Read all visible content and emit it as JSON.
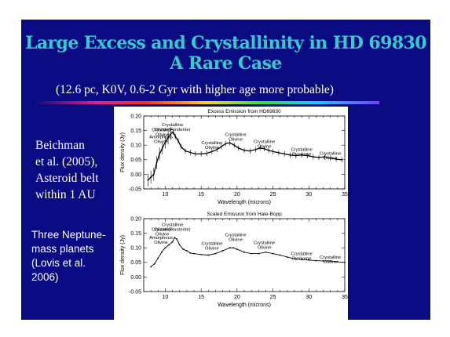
{
  "slide": {
    "title_line1": "Large Excess and Crystallinity in HD 69830",
    "title_line2": "A Rare Case",
    "subtitle": "(12.6 pc, K0V, 0.6-2 Gyr with higher age more probable)",
    "left_text_1": [
      "Beichman",
      "et al. (2005),",
      "Asteroid belt",
      "within 1 AU"
    ],
    "left_text_2": [
      "Three Neptune-",
      "mass planets",
      "(Lovis et al.",
      "2006)"
    ],
    "colors": {
      "background": "#0a0a82",
      "title": "#33cccc",
      "text": "#ffffff"
    }
  },
  "chart_data": [
    {
      "type": "line",
      "title": "Excess Emission from HD69830",
      "xlabel": "Wavelength (microns)",
      "ylabel": "Flux density (Jy)",
      "xlim": [
        7,
        35
      ],
      "ylim": [
        -0.05,
        0.2
      ],
      "xticks": [
        10,
        15,
        20,
        25,
        30,
        35
      ],
      "yticks": [
        -0.05,
        0.0,
        0.05,
        0.1,
        0.15,
        0.2
      ],
      "ytick_labels": [
        "-0.05",
        "0.00",
        "0.05",
        "0.10",
        "0.15",
        "0.20"
      ],
      "error_bars": true,
      "x": [
        7.6,
        8.0,
        8.4,
        8.8,
        9.2,
        9.6,
        10.0,
        10.4,
        10.8,
        11.1,
        11.4,
        11.8,
        12.2,
        12.8,
        13.5,
        14.2,
        15.0,
        15.8,
        16.5,
        17.2,
        17.8,
        18.4,
        19.0,
        19.6,
        20.2,
        21.0,
        21.8,
        22.6,
        23.2,
        23.8,
        24.4,
        25.0,
        25.8,
        26.6,
        27.4,
        28.2,
        29.0,
        29.8,
        30.6,
        31.4,
        32.2,
        33.0,
        33.8,
        34.6
      ],
      "y": [
        -0.02,
        -0.01,
        0.0,
        0.04,
        0.07,
        0.09,
        0.11,
        0.125,
        0.14,
        0.145,
        0.13,
        0.115,
        0.095,
        0.08,
        0.075,
        0.07,
        0.07,
        0.072,
        0.078,
        0.085,
        0.095,
        0.105,
        0.108,
        0.1,
        0.09,
        0.082,
        0.08,
        0.085,
        0.09,
        0.088,
        0.082,
        0.078,
        0.074,
        0.07,
        0.066,
        0.064,
        0.066,
        0.064,
        0.06,
        0.058,
        0.06,
        0.056,
        0.052,
        0.05
      ],
      "annotations": [
        {
          "text": [
            "Crystalline",
            "Olivine(Forsterite)"
          ],
          "x": 11.0,
          "y": 0.165
        },
        {
          "text": [
            "Crystalline",
            "Olivine"
          ],
          "x": 9.6,
          "y": 0.148
        },
        {
          "text": [
            "Amorphous",
            "Olivine"
          ],
          "x": 9.4,
          "y": 0.123
        },
        {
          "text": [
            "Crystalline",
            "Olivine"
          ],
          "x": 16.5,
          "y": 0.103
        },
        {
          "text": [
            "Crystalline",
            "Olivine"
          ],
          "x": 19.8,
          "y": 0.132
        },
        {
          "text": [
            "Crystalline",
            "Olivine"
          ],
          "x": 23.8,
          "y": 0.107
        },
        {
          "text": [
            "Crystalline",
            "Pyroxene"
          ],
          "x": 29.0,
          "y": 0.08
        },
        {
          "text": [
            "Crystalline",
            "Olivine"
          ],
          "x": 33.0,
          "y": 0.067
        }
      ]
    },
    {
      "type": "line",
      "title": "Scaled Emission from Hale-Bopp",
      "xlabel": "Wavelength (microns)",
      "ylabel": "Flux density (Jy)",
      "xlim": [
        7,
        35
      ],
      "ylim": [
        -0.05,
        0.2
      ],
      "xticks": [
        10,
        15,
        20,
        25,
        30,
        35
      ],
      "yticks": [
        -0.05,
        0.0,
        0.05,
        0.1,
        0.15,
        0.2
      ],
      "ytick_labels": [
        "-0.05",
        "0.00",
        "0.05",
        "0.10",
        "0.15",
        "0.20"
      ],
      "error_bars": false,
      "x": [
        8.0,
        8.5,
        9.0,
        9.5,
        10.0,
        10.5,
        11.0,
        11.3,
        11.6,
        12.0,
        12.5,
        13.0,
        13.5,
        14.0,
        15.0,
        16.0,
        17.0,
        18.0,
        19.0,
        19.5,
        20.0,
        21.0,
        22.0,
        23.0,
        24.0,
        25.0,
        26.0,
        27.0,
        28.0,
        29.0,
        30.0,
        31.0,
        32.0,
        33.0,
        34.0,
        35.0
      ],
      "y": [
        0.035,
        0.045,
        0.065,
        0.085,
        0.1,
        0.11,
        0.12,
        0.135,
        0.13,
        0.11,
        0.095,
        0.09,
        0.082,
        0.08,
        0.077,
        0.075,
        0.08,
        0.09,
        0.1,
        0.1,
        0.095,
        0.085,
        0.08,
        0.08,
        0.085,
        0.08,
        0.075,
        0.068,
        0.062,
        0.06,
        0.058,
        0.056,
        0.055,
        0.055,
        0.052,
        0.05
      ],
      "annotations": [
        {
          "text": [
            "Crystalline",
            "Olivine(Forsterite)"
          ],
          "x": 11.0,
          "y": 0.175
        },
        {
          "text": [
            "Crystalline",
            "Olivine"
          ],
          "x": 9.6,
          "y": 0.158
        },
        {
          "text": [
            "Amorphous",
            "Olivine"
          ],
          "x": 9.4,
          "y": 0.13
        },
        {
          "text": [
            "Crystalline",
            "Olivine"
          ],
          "x": 16.5,
          "y": 0.11
        },
        {
          "text": [
            "Crystalline",
            "Olivine"
          ],
          "x": 19.8,
          "y": 0.14
        },
        {
          "text": [
            "Crystalline",
            "Olivine"
          ],
          "x": 23.8,
          "y": 0.112
        },
        {
          "text": [
            "Crystalline",
            "Pyroxene"
          ],
          "x": 29.0,
          "y": 0.075
        },
        {
          "text": [
            "Crystalline",
            "Olivine"
          ],
          "x": 33.0,
          "y": 0.063
        }
      ]
    }
  ]
}
